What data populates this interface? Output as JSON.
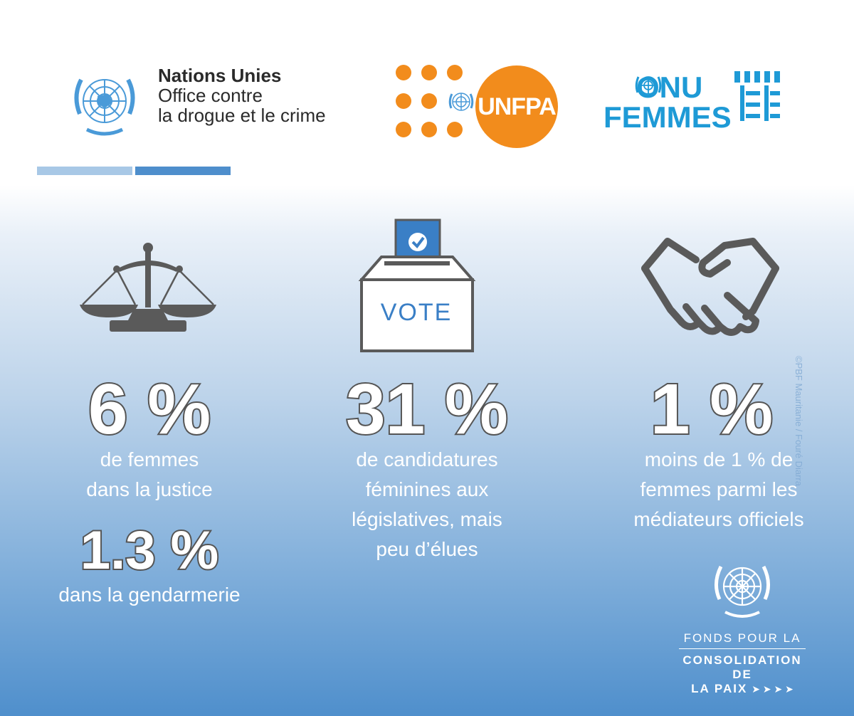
{
  "logos": {
    "unodc": {
      "line1": "Nations Unies",
      "line2": "Office contre",
      "line3": "la drogue et le crime"
    },
    "unfpa": {
      "label": "UNFPA",
      "color": "#f28c1c"
    },
    "onu_femmes": {
      "line1": "ONU",
      "line2": "FEMMES",
      "color": "#1e9ad6"
    }
  },
  "icons": {
    "justice": "scales-icon",
    "vote": "ballot-box-icon",
    "mediation": "handshake-icon",
    "un": "un-emblem-icon"
  },
  "vote_box": {
    "label": "VOTE"
  },
  "stats": [
    {
      "value": "6 %",
      "caption_l1": "de femmes",
      "caption_l2": "dans la justice"
    },
    {
      "value": "31 %",
      "caption_l1": "de candidatures",
      "caption_l2": "féminines aux",
      "caption_l3": "législatives, mais",
      "caption_l4": "peu d’élues"
    },
    {
      "value": "1 %",
      "caption_l1": "moins de 1 % de",
      "caption_l2": "femmes parmi les",
      "caption_l3": "médiateurs officiels"
    },
    {
      "value": "1.3 %",
      "caption_l1": "dans la gendarmerie"
    }
  ],
  "credit": "©PBF Mauritanie / Fouré Diarra",
  "fund": {
    "line1": "FONDS POUR LA",
    "line2": "CONSOLIDATION DE",
    "line3": "LA PAIX"
  },
  "colors": {
    "accent_light": "#a8c8e6",
    "accent_dark": "#4e8ecc",
    "icon_grey": "#5a5a5a"
  }
}
